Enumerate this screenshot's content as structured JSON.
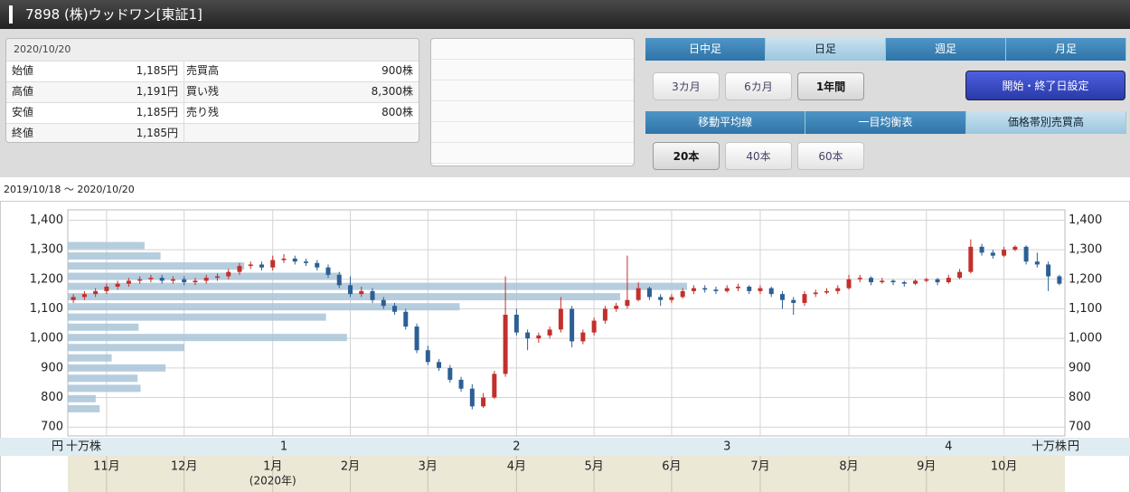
{
  "header": {
    "title": "7898 (株)ウッドワン[東証1]"
  },
  "quote": {
    "date": "2020/10/20",
    "rows": [
      [
        "始値",
        "1,185円",
        "売買高",
        "900株"
      ],
      [
        "高値",
        "1,191円",
        "買い残",
        "8,300株"
      ],
      [
        "安値",
        "1,185円",
        "売り残",
        "800株"
      ],
      [
        "終値",
        "1,185円"
      ]
    ]
  },
  "tabs": {
    "period": [
      "日中足",
      "日足",
      "週足",
      "月足"
    ],
    "period_active": 1,
    "range": [
      "3カ月",
      "6カ月",
      "1年間"
    ],
    "range_active": 2,
    "set_dates": "開始・終了日設定",
    "indicators": [
      "移動平均線",
      "一目均衡表",
      "価格帯別売買高"
    ],
    "indicators_active": 2,
    "ma": [
      "20本",
      "40本",
      "60本"
    ],
    "ma_active": 0
  },
  "chart_data": {
    "type": "candlestick",
    "date_range": "2019/10/18 〜 2020/10/20",
    "y_unit": "円",
    "volume_unit": "十万株",
    "ylim": [
      670,
      1435
    ],
    "yticks": [
      700,
      800,
      900,
      {
        "value": 1000,
        "label": "1,000"
      },
      {
        "value": 1100,
        "label": "1,100"
      },
      {
        "value": 1200,
        "label": "1,200"
      },
      {
        "value": 1300,
        "label": "1,300"
      },
      {
        "value": 1400,
        "label": "1,400"
      }
    ],
    "grid": true,
    "up_color": "#c2302c",
    "down_color": "#2c5f94",
    "categories": [
      null,
      null,
      null,
      "11月",
      null,
      null,
      null,
      null,
      null,
      null,
      "12月",
      null,
      null,
      null,
      null,
      null,
      null,
      null,
      "1月",
      null,
      null,
      null,
      null,
      null,
      null,
      "2月",
      null,
      null,
      null,
      null,
      null,
      null,
      "3月",
      null,
      null,
      null,
      null,
      null,
      null,
      null,
      "4月",
      null,
      null,
      null,
      null,
      null,
      null,
      "5月",
      null,
      null,
      null,
      null,
      null,
      null,
      "6月",
      null,
      null,
      null,
      null,
      null,
      null,
      null,
      "7月",
      null,
      null,
      null,
      null,
      null,
      null,
      null,
      "8月",
      null,
      null,
      null,
      null,
      null,
      null,
      "9月",
      null,
      null,
      null,
      null,
      null,
      null,
      "10月",
      null,
      null,
      null,
      null,
      null
    ],
    "year_note": {
      "label": "(2020年)",
      "index": 18
    },
    "quarter_labels": [
      {
        "label": "1",
        "index": 19
      },
      {
        "label": "2",
        "index": 40
      },
      {
        "label": "3",
        "index": 59
      },
      {
        "label": "4",
        "index": 79
      }
    ],
    "candles": [
      [
        1130,
        1150,
        1120,
        1140
      ],
      [
        1140,
        1160,
        1130,
        1150
      ],
      [
        1150,
        1170,
        1140,
        1160
      ],
      [
        1160,
        1185,
        1150,
        1175
      ],
      [
        1175,
        1195,
        1165,
        1185
      ],
      [
        1185,
        1205,
        1175,
        1195
      ],
      [
        1195,
        1210,
        1185,
        1200
      ],
      [
        1200,
        1215,
        1190,
        1205
      ],
      [
        1205,
        1215,
        1185,
        1195
      ],
      [
        1195,
        1210,
        1185,
        1200
      ],
      [
        1200,
        1210,
        1180,
        1190
      ],
      [
        1190,
        1205,
        1180,
        1195
      ],
      [
        1195,
        1215,
        1185,
        1205
      ],
      [
        1205,
        1220,
        1195,
        1210
      ],
      [
        1210,
        1235,
        1200,
        1225
      ],
      [
        1225,
        1255,
        1215,
        1245
      ],
      [
        1245,
        1260,
        1235,
        1250
      ],
      [
        1250,
        1260,
        1230,
        1240
      ],
      [
        1240,
        1280,
        1230,
        1265
      ],
      [
        1265,
        1285,
        1255,
        1270
      ],
      [
        1270,
        1280,
        1250,
        1260
      ],
      [
        1260,
        1270,
        1245,
        1255
      ],
      [
        1255,
        1265,
        1230,
        1240
      ],
      [
        1240,
        1250,
        1205,
        1215
      ],
      [
        1215,
        1225,
        1170,
        1180
      ],
      [
        1180,
        1210,
        1140,
        1150
      ],
      [
        1150,
        1175,
        1140,
        1160
      ],
      [
        1160,
        1170,
        1120,
        1130
      ],
      [
        1130,
        1140,
        1100,
        1110
      ],
      [
        1110,
        1120,
        1080,
        1090
      ],
      [
        1090,
        1100,
        1030,
        1040
      ],
      [
        1040,
        1050,
        950,
        960
      ],
      [
        960,
        975,
        910,
        920
      ],
      [
        920,
        930,
        890,
        900
      ],
      [
        900,
        910,
        850,
        860
      ],
      [
        860,
        870,
        820,
        830
      ],
      [
        830,
        845,
        760,
        770
      ],
      [
        770,
        815,
        765,
        800
      ],
      [
        800,
        890,
        795,
        880
      ],
      [
        880,
        1210,
        870,
        1080
      ],
      [
        1080,
        1100,
        1010,
        1020
      ],
      [
        1020,
        1030,
        960,
        1000
      ],
      [
        1000,
        1020,
        985,
        1010
      ],
      [
        1010,
        1040,
        1000,
        1030
      ],
      [
        1030,
        1140,
        1020,
        1100
      ],
      [
        1100,
        1110,
        970,
        990
      ],
      [
        990,
        1030,
        980,
        1020
      ],
      [
        1020,
        1070,
        1010,
        1060
      ],
      [
        1060,
        1110,
        1050,
        1100
      ],
      [
        1100,
        1120,
        1090,
        1110
      ],
      [
        1110,
        1280,
        1100,
        1130
      ],
      [
        1130,
        1190,
        1125,
        1170
      ],
      [
        1170,
        1175,
        1130,
        1140
      ],
      [
        1140,
        1150,
        1110,
        1130
      ],
      [
        1130,
        1150,
        1120,
        1140
      ],
      [
        1140,
        1170,
        1135,
        1160
      ],
      [
        1160,
        1180,
        1150,
        1170
      ],
      [
        1170,
        1180,
        1155,
        1165
      ],
      [
        1165,
        1175,
        1150,
        1160
      ],
      [
        1160,
        1180,
        1155,
        1170
      ],
      [
        1170,
        1185,
        1160,
        1175
      ],
      [
        1175,
        1180,
        1150,
        1160
      ],
      [
        1160,
        1180,
        1150,
        1170
      ],
      [
        1170,
        1175,
        1140,
        1150
      ],
      [
        1150,
        1160,
        1100,
        1130
      ],
      [
        1130,
        1140,
        1080,
        1120
      ],
      [
        1120,
        1160,
        1110,
        1150
      ],
      [
        1150,
        1165,
        1140,
        1155
      ],
      [
        1155,
        1170,
        1150,
        1160
      ],
      [
        1160,
        1180,
        1150,
        1170
      ],
      [
        1170,
        1215,
        1165,
        1200
      ],
      [
        1200,
        1215,
        1190,
        1205
      ],
      [
        1205,
        1210,
        1180,
        1190
      ],
      [
        1190,
        1205,
        1185,
        1195
      ],
      [
        1195,
        1200,
        1180,
        1190
      ],
      [
        1190,
        1195,
        1175,
        1185
      ],
      [
        1185,
        1200,
        1180,
        1195
      ],
      [
        1195,
        1205,
        1190,
        1200
      ],
      [
        1200,
        1205,
        1180,
        1190
      ],
      [
        1190,
        1215,
        1185,
        1205
      ],
      [
        1205,
        1235,
        1200,
        1225
      ],
      [
        1225,
        1335,
        1220,
        1310
      ],
      [
        1310,
        1320,
        1280,
        1290
      ],
      [
        1290,
        1300,
        1270,
        1280
      ],
      [
        1280,
        1310,
        1275,
        1300
      ],
      [
        1300,
        1315,
        1295,
        1310
      ],
      [
        1310,
        1315,
        1250,
        1260
      ],
      [
        1260,
        1290,
        1240,
        1250
      ],
      [
        1250,
        1260,
        1160,
        1210
      ],
      [
        1210,
        1215,
        1180,
        1185
      ]
    ],
    "volume_profile": {
      "color": "#a9c4d8",
      "xlim": [
        0,
        100
      ],
      "prices": [
        1314,
        1279,
        1245,
        1210,
        1176,
        1141,
        1107,
        1072,
        1038,
        1003,
        969,
        934,
        900,
        865,
        831,
        796,
        762
      ],
      "values": [
        7.7,
        9.3,
        17.7,
        27.4,
        62.1,
        55.4,
        39.3,
        25.9,
        7.1,
        28,
        11.7,
        4.4,
        9.8,
        7,
        7.3,
        2.8,
        3.2
      ]
    }
  }
}
